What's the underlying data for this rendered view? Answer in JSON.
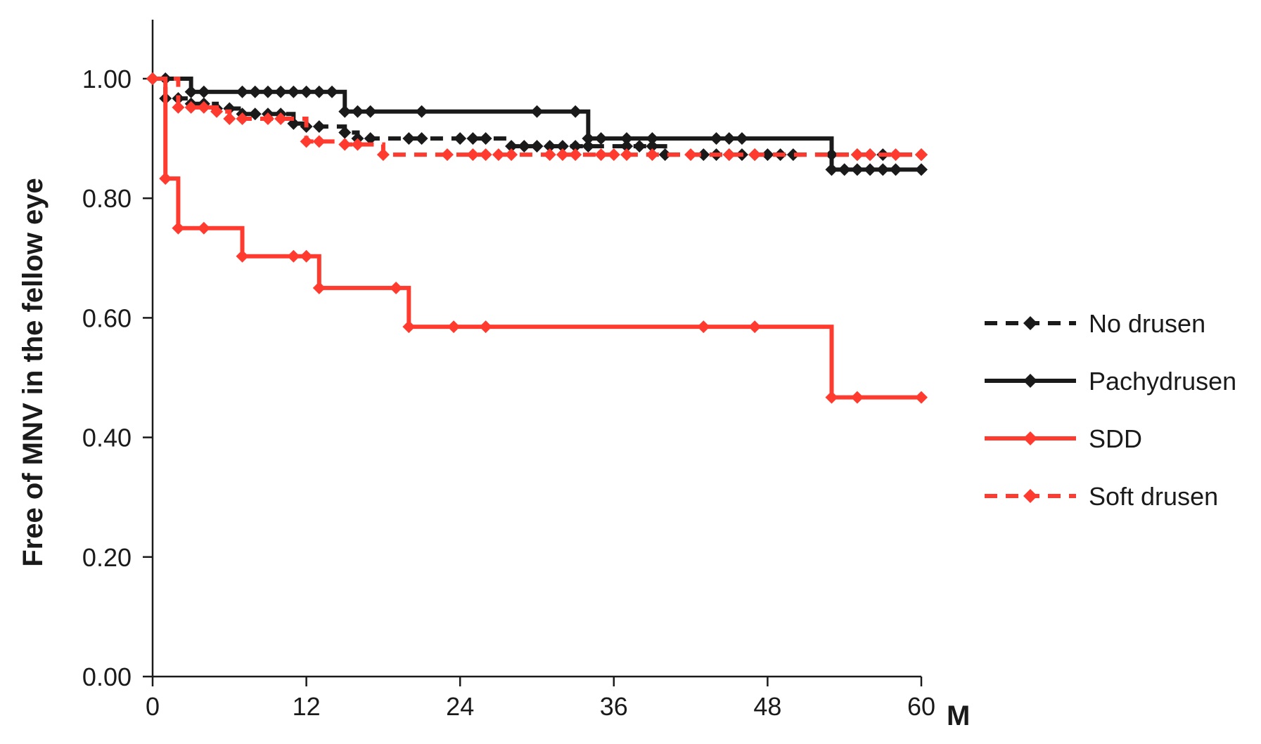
{
  "chart_data": {
    "type": "line",
    "step": true,
    "xlabel": "M",
    "ylabel": "Free of MNV in the fellow eye",
    "xlim": [
      0,
      60
    ],
    "ylim": [
      0,
      1.1
    ],
    "x_ticks": [
      0,
      12,
      24,
      36,
      48,
      60
    ],
    "y_ticks": [
      "0.00",
      "0.20",
      "0.40",
      "0.60",
      "0.80",
      "1.00"
    ],
    "grid": false,
    "legend_position": "right",
    "series": [
      {
        "name": "No drusen",
        "color": "#1a1a1a",
        "dashed": true,
        "points": [
          [
            0,
            1.0
          ],
          [
            1,
            0.967
          ],
          [
            2,
            0.967
          ],
          [
            3,
            0.958
          ],
          [
            4,
            0.958
          ],
          [
            5,
            0.95
          ],
          [
            6,
            0.95
          ],
          [
            7,
            0.941
          ],
          [
            8,
            0.941
          ],
          [
            9,
            0.941
          ],
          [
            10,
            0.941
          ],
          [
            11,
            0.925
          ],
          [
            12,
            0.92
          ],
          [
            13,
            0.92
          ],
          [
            15,
            0.91
          ],
          [
            16,
            0.9
          ],
          [
            17,
            0.9
          ],
          [
            20,
            0.9
          ],
          [
            21,
            0.9
          ],
          [
            24,
            0.9
          ],
          [
            25,
            0.9
          ],
          [
            26,
            0.9
          ],
          [
            28,
            0.887
          ],
          [
            29,
            0.887
          ],
          [
            30,
            0.887
          ],
          [
            31,
            0.887
          ],
          [
            32,
            0.887
          ],
          [
            33,
            0.887
          ],
          [
            34,
            0.887
          ],
          [
            37,
            0.887
          ],
          [
            38,
            0.887
          ],
          [
            39,
            0.887
          ],
          [
            40,
            0.873
          ],
          [
            43,
            0.873
          ],
          [
            44,
            0.873
          ],
          [
            45,
            0.873
          ],
          [
            46,
            0.873
          ],
          [
            47,
            0.873
          ],
          [
            48,
            0.873
          ],
          [
            49,
            0.873
          ],
          [
            50,
            0.873
          ],
          [
            53,
            0.873
          ],
          [
            55,
            0.873
          ],
          [
            56,
            0.873
          ],
          [
            57,
            0.873
          ],
          [
            60,
            0.873
          ]
        ]
      },
      {
        "name": "Pachydrusen",
        "color": "#1a1a1a",
        "dashed": false,
        "points": [
          [
            0,
            1.0
          ],
          [
            1,
            1.0
          ],
          [
            3,
            0.978
          ],
          [
            4,
            0.978
          ],
          [
            7,
            0.978
          ],
          [
            8,
            0.978
          ],
          [
            9,
            0.978
          ],
          [
            10,
            0.978
          ],
          [
            11,
            0.978
          ],
          [
            12,
            0.978
          ],
          [
            13,
            0.978
          ],
          [
            14,
            0.978
          ],
          [
            15,
            0.945
          ],
          [
            16,
            0.945
          ],
          [
            17,
            0.945
          ],
          [
            21,
            0.945
          ],
          [
            30,
            0.945
          ],
          [
            33,
            0.945
          ],
          [
            34,
            0.9
          ],
          [
            35,
            0.9
          ],
          [
            37,
            0.9
          ],
          [
            39,
            0.9
          ],
          [
            44,
            0.9
          ],
          [
            45,
            0.9
          ],
          [
            46,
            0.9
          ],
          [
            53,
            0.848
          ],
          [
            54,
            0.848
          ],
          [
            55,
            0.848
          ],
          [
            56,
            0.848
          ],
          [
            57,
            0.848
          ],
          [
            58,
            0.848
          ],
          [
            60,
            0.848
          ]
        ]
      },
      {
        "name": "SDD",
        "color": "#ff3b2f",
        "dashed": false,
        "points": [
          [
            0,
            1.0
          ],
          [
            1,
            0.833
          ],
          [
            2,
            0.75
          ],
          [
            4,
            0.75
          ],
          [
            7,
            0.703
          ],
          [
            11,
            0.703
          ],
          [
            12,
            0.703
          ],
          [
            13,
            0.65
          ],
          [
            19,
            0.65
          ],
          [
            20,
            0.585
          ],
          [
            23.5,
            0.585
          ],
          [
            26,
            0.585
          ],
          [
            43,
            0.585
          ],
          [
            47,
            0.585
          ],
          [
            53,
            0.467
          ],
          [
            55,
            0.467
          ],
          [
            60,
            0.467
          ]
        ]
      },
      {
        "name": "Soft drusen",
        "color": "#ff3b2f",
        "dashed": true,
        "points": [
          [
            0,
            1.0
          ],
          [
            2,
            0.952
          ],
          [
            3,
            0.952
          ],
          [
            4,
            0.952
          ],
          [
            5,
            0.945
          ],
          [
            6,
            0.933
          ],
          [
            7,
            0.933
          ],
          [
            9,
            0.933
          ],
          [
            10,
            0.933
          ],
          [
            12,
            0.895
          ],
          [
            13,
            0.895
          ],
          [
            15,
            0.89
          ],
          [
            16,
            0.89
          ],
          [
            18,
            0.873
          ],
          [
            23,
            0.873
          ],
          [
            25,
            0.873
          ],
          [
            26,
            0.873
          ],
          [
            27,
            0.873
          ],
          [
            28,
            0.873
          ],
          [
            31,
            0.873
          ],
          [
            32,
            0.873
          ],
          [
            33,
            0.873
          ],
          [
            35,
            0.873
          ],
          [
            36,
            0.873
          ],
          [
            37,
            0.873
          ],
          [
            39,
            0.873
          ],
          [
            42,
            0.873
          ],
          [
            45,
            0.873
          ],
          [
            47,
            0.873
          ],
          [
            55,
            0.873
          ],
          [
            56,
            0.873
          ],
          [
            58,
            0.873
          ],
          [
            60,
            0.873
          ]
        ]
      }
    ]
  }
}
